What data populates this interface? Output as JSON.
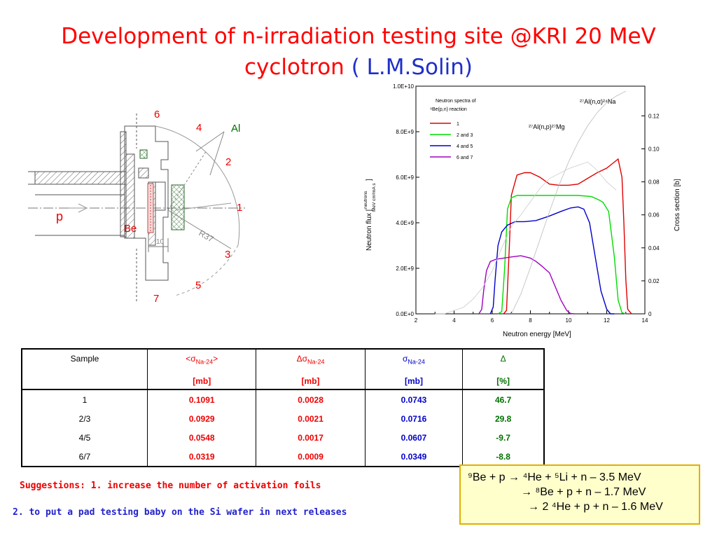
{
  "title": {
    "line1": "Development of n-irradiation testing site @KRI 20 MeV",
    "line2": "cyclotron",
    "author": "( L.M.Solin)"
  },
  "diagram": {
    "labels": {
      "n6": "6",
      "n4": "4",
      "al": "Al",
      "n2": "2",
      "n1": "1",
      "p": "p",
      "be": "Be",
      "r37": "R37",
      "n3": "3",
      "n5": "5",
      "n7": "7",
      "dim": "10"
    },
    "colors": {
      "label_red": "#ee0000",
      "al_green": "#007000"
    }
  },
  "chart_data": {
    "type": "line",
    "title": "",
    "xlabel": "Neutron energy [MeV]",
    "ylabel_left": "Neutron flux [ neutrons / MeV cm² mA s ]",
    "ylabel_left_main": "Neutron flux [",
    "ylabel_left_num": "neutrons",
    "ylabel_left_den": "MeV cm²mA s",
    "ylabel_left_close": "]",
    "ylabel_right": "Cross section [b]",
    "xlim": [
      2,
      14
    ],
    "ylim_left": [
      0,
      10000000000.0
    ],
    "ylim_right": [
      0,
      0.138
    ],
    "x_ticks": [
      "2",
      "4",
      "6",
      "8",
      "10",
      "12",
      "14"
    ],
    "y_ticks_left": [
      "0.0E+0",
      "2.0E+9",
      "4.0E+9",
      "6.0E+9",
      "8.0E+9",
      "1.0E+10"
    ],
    "y_ticks_right": [
      "0",
      "0.02",
      "0.04",
      "0.06",
      "0.08",
      "0.10",
      "0.12"
    ],
    "legend": {
      "position": "top-left",
      "title_line1": "Neutron spectra of",
      "title_line2": "⁹Be(p,n) reaction",
      "entries": [
        "1",
        "2 and 3",
        "4 and 5",
        "6 and 7"
      ]
    },
    "annotations": {
      "al_na": "²⁷Al(n,α)²⁴Na",
      "al_mg": "²⁷Al(n,p)²⁷Mg"
    },
    "series": [
      {
        "name": "1",
        "color": "#e00000",
        "x": [
          6.6,
          6.75,
          6.9,
          7.0,
          7.3,
          7.7,
          8.0,
          8.5,
          9.0,
          9.5,
          10.0,
          10.5,
          11.0,
          11.5,
          12.0,
          12.3,
          12.6,
          12.8,
          12.9,
          13.0,
          13.1,
          13.3
        ],
        "y": [
          0.0,
          150000000.0,
          3000000000.0,
          5200000000.0,
          6100000000.0,
          6200000000.0,
          6200000000.0,
          6000000000.0,
          5700000000.0,
          5650000000.0,
          5650000000.0,
          5700000000.0,
          5950000000.0,
          6200000000.0,
          6400000000.0,
          6600000000.0,
          6800000000.0,
          6000000000.0,
          4000000000.0,
          1500000000.0,
          200000000.0,
          0.0
        ]
      },
      {
        "name": "2 and 3",
        "color": "#00dd00",
        "x": [
          6.3,
          6.5,
          6.65,
          6.8,
          7.0,
          7.3,
          7.8,
          8.5,
          9.5,
          10.5,
          11.2,
          11.6,
          11.8,
          12.1,
          12.4,
          12.6,
          12.8,
          13.0
        ],
        "y": [
          0.0,
          100000000.0,
          2000000000.0,
          4600000000.0,
          5100000000.0,
          5200000000.0,
          5200000000.0,
          5200000000.0,
          5200000000.0,
          5200000000.0,
          5150000000.0,
          5000000000.0,
          4900000000.0,
          4500000000.0,
          2500000000.0,
          600000000.0,
          50000000.0,
          0.0
        ]
      },
      {
        "name": "4 and 5",
        "color": "#0000cc",
        "x": [
          5.9,
          6.05,
          6.15,
          6.3,
          6.5,
          6.8,
          7.2,
          7.7,
          8.3,
          9.0,
          9.6,
          10.1,
          10.5,
          10.8,
          11.1,
          11.4,
          11.7,
          12.0,
          12.2,
          12.4
        ],
        "y": [
          0.0,
          300000000.0,
          1500000000.0,
          3000000000.0,
          3600000000.0,
          3900000000.0,
          4050000000.0,
          4050000000.0,
          4100000000.0,
          4300000000.0,
          4500000000.0,
          4650000000.0,
          4700000000.0,
          4600000000.0,
          4000000000.0,
          2500000000.0,
          1000000000.0,
          200000000.0,
          0.0,
          0.0
        ]
      },
      {
        "name": "6 and 7",
        "color": "#a000c0",
        "x": [
          5.3,
          5.45,
          5.55,
          5.7,
          5.9,
          6.2,
          6.6,
          7.0,
          7.5,
          8.0,
          8.3,
          8.6,
          9.0,
          9.3,
          9.6,
          9.9,
          10.1,
          10.3
        ],
        "y": [
          0.0,
          200000000.0,
          1000000000.0,
          1900000000.0,
          2300000000.0,
          2400000000.0,
          2450000000.0,
          2500000000.0,
          2550000000.0,
          2450000000.0,
          2300000000.0,
          2100000000.0,
          1800000000.0,
          1200000000.0,
          600000000.0,
          150000000.0,
          20000000.0,
          0.0
        ]
      },
      {
        "name": "",
        "color": "#bbbbbb",
        "axis": "right",
        "x": [
          7.0,
          7.5,
          8.0,
          8.5,
          9.0,
          9.5,
          10.0,
          10.5,
          11.0,
          11.5,
          12.0,
          12.5,
          13.0
        ],
        "y": [
          0.0,
          0.012,
          0.028,
          0.045,
          0.062,
          0.078,
          0.092,
          0.104,
          0.114,
          0.122,
          0.128,
          0.132,
          0.135
        ]
      },
      {
        "name": "",
        "color": "#cccccc",
        "axis": "right",
        "x": [
          3.0,
          3.5,
          4.0,
          4.5,
          5.0,
          5.5,
          6.0,
          6.5,
          7.0,
          7.5,
          8.0,
          8.5,
          9.0,
          9.5,
          10.0,
          10.5,
          11.0,
          11.5,
          12.0,
          12.5
        ],
        "y": [
          0.0,
          0.0,
          0.002,
          0.004,
          0.009,
          0.016,
          0.026,
          0.04,
          0.053,
          0.06,
          0.068,
          0.076,
          0.082,
          0.085,
          0.088,
          0.09,
          0.092,
          0.087,
          0.08,
          0.075
        ]
      }
    ]
  },
  "table": {
    "headers": [
      "Sample",
      "<σNa-24>",
      "Δσ Na-24",
      "σNa-24",
      "Δ"
    ],
    "header_parts": {
      "sigma_avg_pre": "<",
      "sigma_avg_sym": "σ",
      "sigma_avg_sub": "Na-24",
      "sigma_avg_post": ">",
      "dsigma_sym": "Δσ",
      "dsigma_sub": "Na-24",
      "sigma_sym": "σ",
      "sigma_sub": "Na-24",
      "delta_sym": "Δ"
    },
    "units": [
      "",
      "[mb]",
      "[mb]",
      "[mb]",
      "[%]"
    ],
    "rows": [
      [
        "1",
        "0.1091",
        "0.0028",
        "0.0743",
        "46.7"
      ],
      [
        "2/3",
        "0.0929",
        "0.0021",
        "0.0716",
        "29.8"
      ],
      [
        "4/5",
        "0.0548",
        "0.0017",
        "0.0607",
        "-9.7"
      ],
      [
        "6/7",
        "0.0319",
        "0.0009",
        "0.0349",
        "-8.8"
      ]
    ]
  },
  "suggestions": {
    "line1": "Suggestions: 1. increase the number of activation foils",
    "line2": "2. to put a pad testing baby on the Si wafer in next releases"
  },
  "reactions": {
    "line1": "⁹Be + p → ⁴He + ⁵Li + n – 3.5 MeV",
    "line2": "→ ⁸Be + p + n – 1.7 MeV",
    "line3": "→ 2 ⁴He + p + n – 1.6 MeV"
  }
}
